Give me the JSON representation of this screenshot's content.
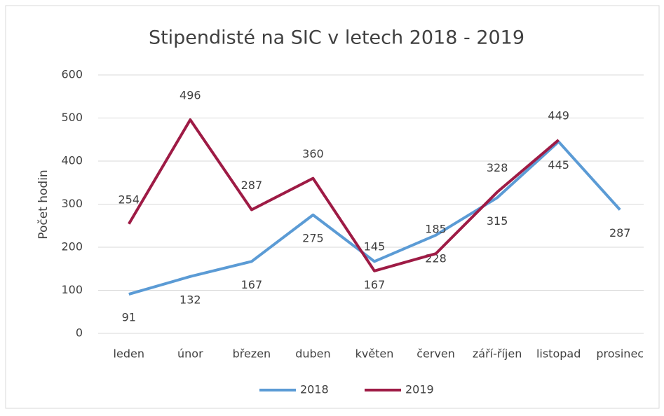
{
  "chart_data": {
    "type": "line",
    "title": "Stipendisté na SIC v letech 2018 - 2019",
    "y_label": "Počet hodin",
    "categories": [
      "leden",
      "únor",
      "březen",
      "duben",
      "květen",
      "červen",
      "září-říjen",
      "listopad",
      "prosinec"
    ],
    "series": [
      {
        "name": "2018",
        "color": "#5b9bd5",
        "values": [
          91,
          132,
          167,
          275,
          167,
          228,
          315,
          445,
          287
        ]
      },
      {
        "name": "2019",
        "color": "#9e1b45",
        "values": [
          254,
          496,
          287,
          360,
          145,
          185,
          328,
          449,
          null
        ]
      }
    ],
    "ylim": [
      0,
      600
    ],
    "yticks": [
      0,
      100,
      200,
      300,
      400,
      500,
      600
    ],
    "grid": true,
    "legend": "bottom"
  }
}
